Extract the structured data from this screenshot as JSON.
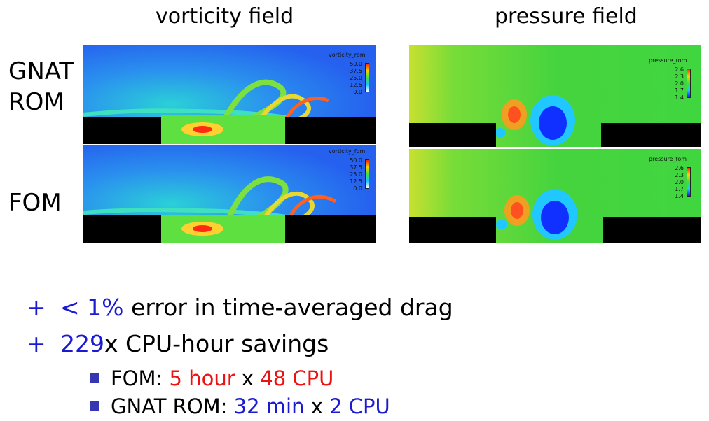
{
  "titles": {
    "vorticity": "vorticity field",
    "pressure": "pressure field"
  },
  "row_labels": {
    "rom_line1": "GNAT",
    "rom_line2": "ROM",
    "fom": "FOM"
  },
  "colorbars": {
    "vort_rom": {
      "title": "vorticity_rom",
      "ticks": [
        "50.0",
        "37.5",
        "25.0",
        "12.5",
        "0.0"
      ]
    },
    "vort_fom": {
      "title": "vorticity_fom",
      "ticks": [
        "50.0",
        "37.5",
        "25.0",
        "12.5",
        "0.0"
      ]
    },
    "pres_rom": {
      "title": "pressure_rom",
      "ticks": [
        "2.6",
        "2.3",
        "2.0",
        "1.7",
        "1.4"
      ]
    },
    "pres_fom": {
      "title": "pressure_fom",
      "ticks": [
        "2.6",
        "2.3",
        "2.0",
        "1.7",
        "1.4"
      ]
    }
  },
  "colors": {
    "vort_bg": "#2a6cf0",
    "pres_bg": "#3ed43e",
    "geometry": "#000000",
    "accent_blue": "#1a1ad0",
    "accent_red": "#ee1111",
    "bullet_square": "#3636b4"
  },
  "bullets": {
    "plus": "+",
    "b1": {
      "lt": "<",
      "pct": "1%",
      "rest": "error in time-averaged drag"
    },
    "b2": {
      "num": "229",
      "rest": "x CPU-hour savings"
    },
    "s1": {
      "label": "FOM:",
      "a": "5 hour",
      "x": "x",
      "b": "48 CPU"
    },
    "s2": {
      "label": "GNAT ROM:",
      "a": "32 min",
      "x": "x",
      "b": "2 CPU"
    }
  }
}
